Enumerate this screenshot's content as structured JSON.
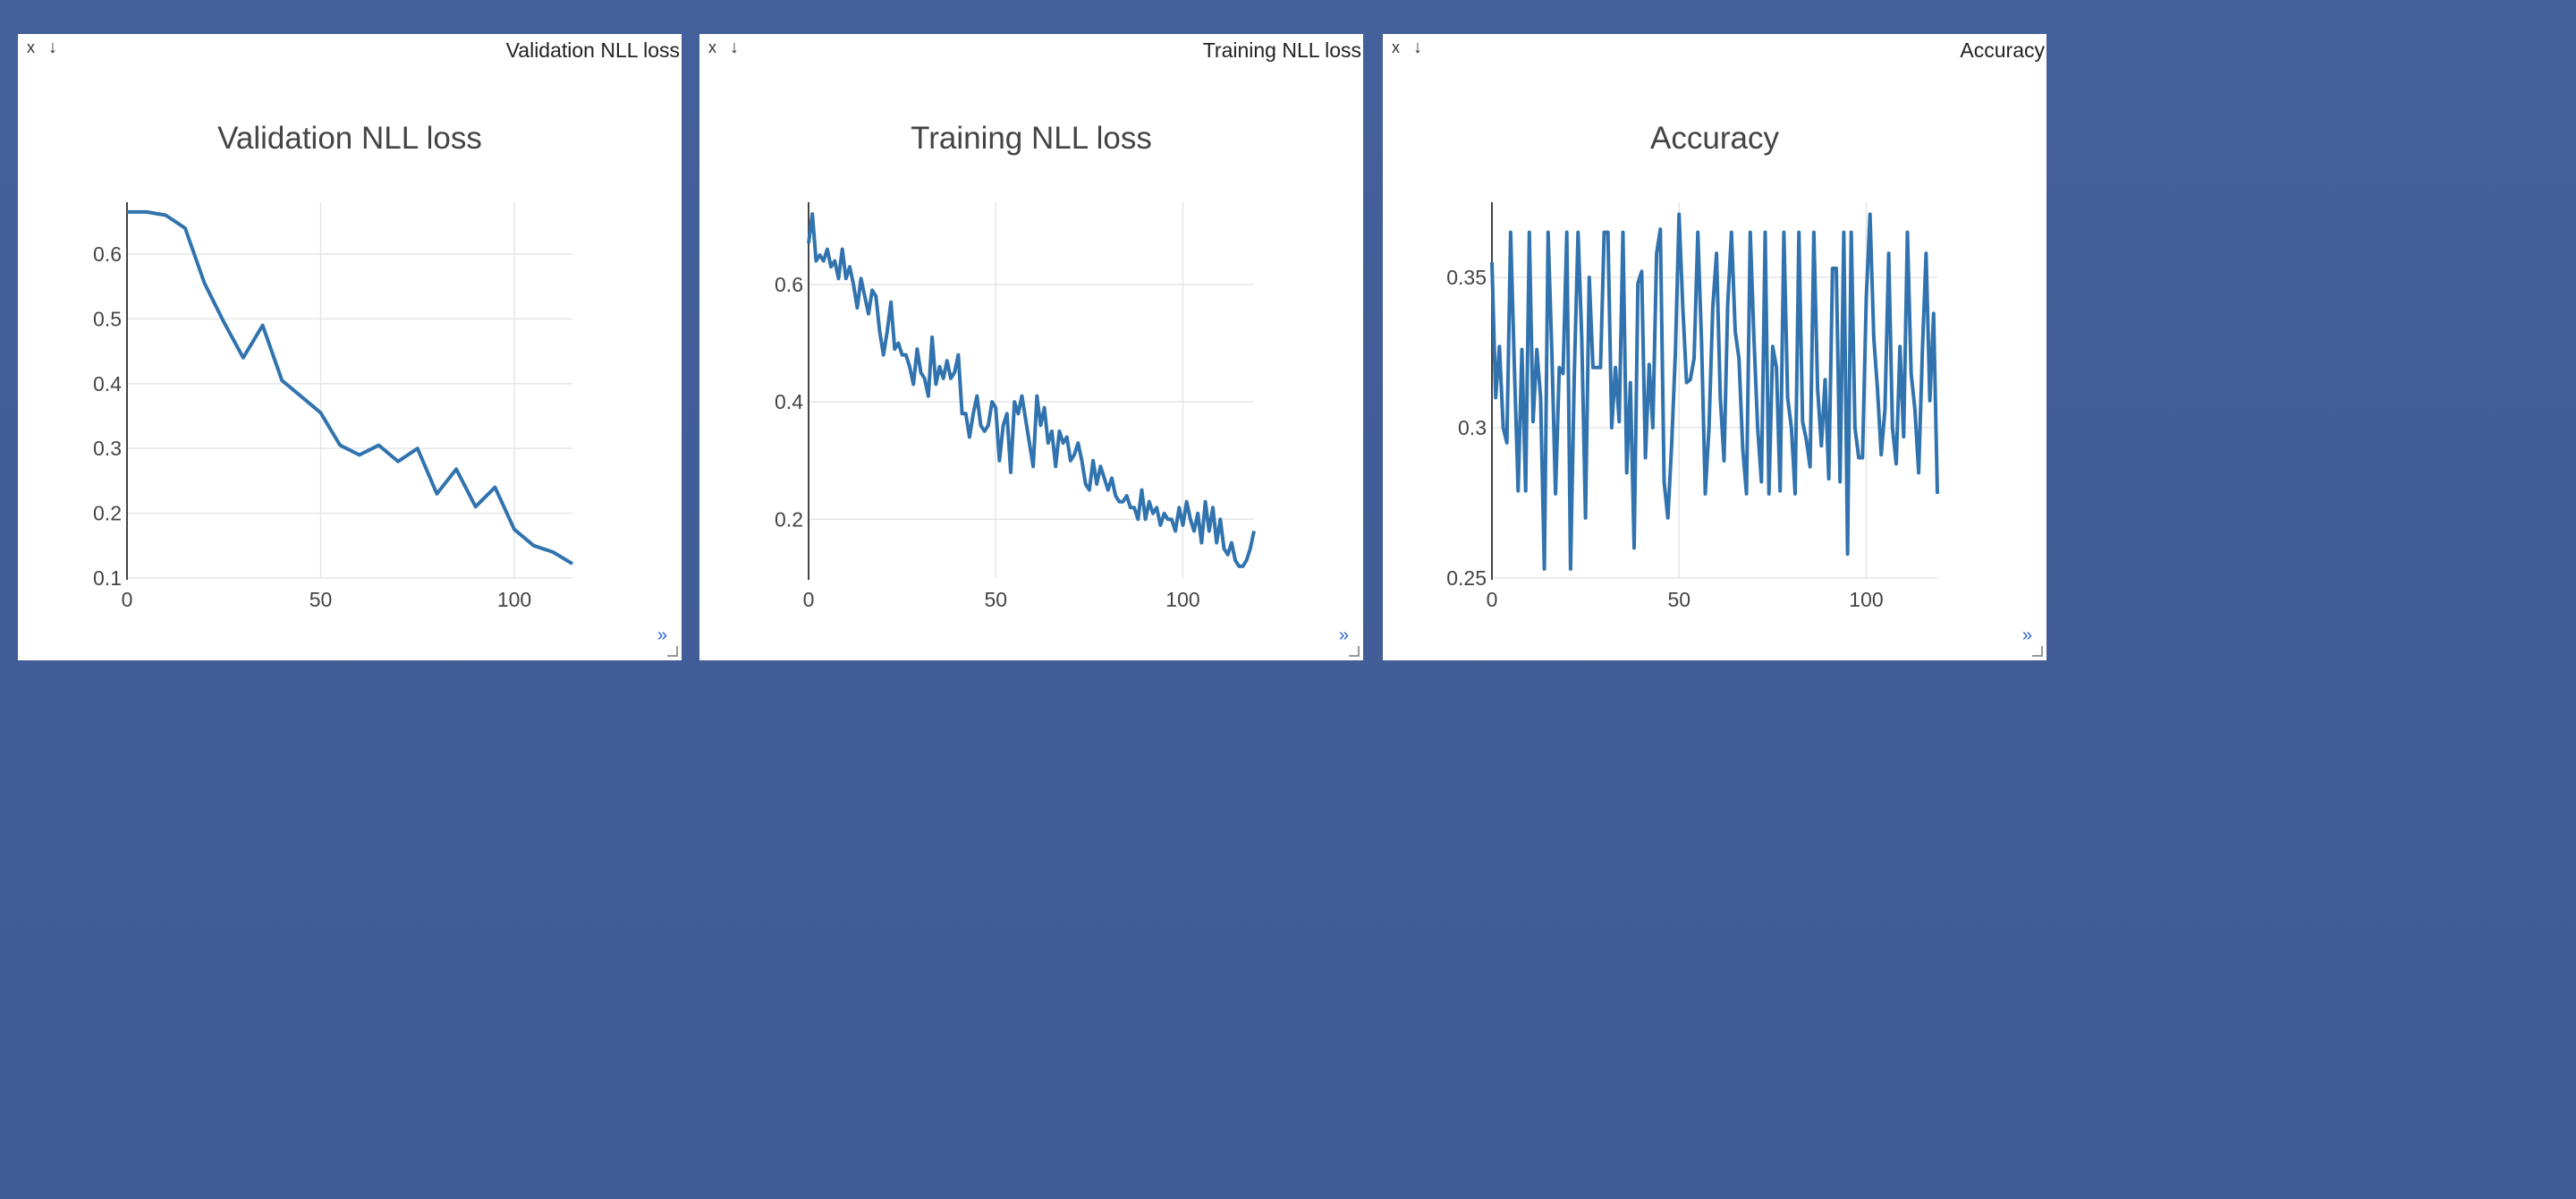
{
  "colors": {
    "background": "#425d97",
    "line": "#3173ae",
    "grid": "#e6e6e6"
  },
  "panes": [
    {
      "header_title": "Validation NLL loss",
      "close_label": "x",
      "download_label": "↓",
      "more_label": "»"
    },
    {
      "header_title": "Training NLL loss",
      "close_label": "x",
      "download_label": "↓",
      "more_label": "»"
    },
    {
      "header_title": "Accuracy",
      "close_label": "x",
      "download_label": "↓",
      "more_label": "»"
    }
  ],
  "chart_data": [
    {
      "type": "line",
      "title": "Validation NLL loss",
      "xlabel": "",
      "ylabel": "",
      "xlim": [
        0,
        115
      ],
      "ylim": [
        0.1,
        0.68
      ],
      "xticks": [
        0,
        50,
        100
      ],
      "yticks": [
        0.1,
        0.2,
        0.3,
        0.4,
        0.5,
        0.6
      ],
      "ytick_labels": [
        "0.1",
        "0.2",
        "0.3",
        "0.4",
        "0.5",
        "0.6"
      ],
      "grid": true,
      "x": [
        0,
        5,
        10,
        15,
        20,
        25,
        30,
        35,
        40,
        45,
        50,
        55,
        60,
        65,
        70,
        75,
        80,
        85,
        90,
        95,
        100,
        105,
        110,
        115
      ],
      "y": [
        0.665,
        0.665,
        0.66,
        0.64,
        0.555,
        0.495,
        0.44,
        0.49,
        0.405,
        0.38,
        0.355,
        0.305,
        0.29,
        0.305,
        0.28,
        0.3,
        0.23,
        0.268,
        0.21,
        0.24,
        0.175,
        0.15,
        0.14,
        0.122
      ]
    },
    {
      "type": "line",
      "title": "Training NLL loss",
      "xlabel": "",
      "ylabel": "",
      "xlim": [
        0,
        119
      ],
      "ylim": [
        0.1,
        0.74
      ],
      "xticks": [
        0,
        50,
        100
      ],
      "yticks": [
        0.2,
        0.4,
        0.6
      ],
      "ytick_labels": [
        "0.2",
        "0.4",
        "0.6"
      ],
      "grid": true,
      "x": [
        0,
        1,
        2,
        3,
        4,
        5,
        6,
        7,
        8,
        9,
        10,
        11,
        12,
        13,
        14,
        15,
        16,
        17,
        18,
        19,
        20,
        21,
        22,
        23,
        24,
        25,
        26,
        27,
        28,
        29,
        30,
        31,
        32,
        33,
        34,
        35,
        36,
        37,
        38,
        39,
        40,
        41,
        42,
        43,
        44,
        45,
        46,
        47,
        48,
        49,
        50,
        51,
        52,
        53,
        54,
        55,
        56,
        57,
        58,
        59,
        60,
        61,
        62,
        63,
        64,
        65,
        66,
        67,
        68,
        69,
        70,
        71,
        72,
        73,
        74,
        75,
        76,
        77,
        78,
        79,
        80,
        81,
        82,
        83,
        84,
        85,
        86,
        87,
        88,
        89,
        90,
        91,
        92,
        93,
        94,
        95,
        96,
        97,
        98,
        99,
        100,
        101,
        102,
        103,
        104,
        105,
        106,
        107,
        108,
        109,
        110,
        111,
        112,
        113,
        114,
        115,
        116,
        117,
        118,
        119
      ],
      "y": [
        0.67,
        0.72,
        0.64,
        0.65,
        0.64,
        0.66,
        0.63,
        0.64,
        0.61,
        0.66,
        0.61,
        0.63,
        0.6,
        0.56,
        0.61,
        0.58,
        0.55,
        0.59,
        0.58,
        0.52,
        0.48,
        0.52,
        0.57,
        0.49,
        0.5,
        0.48,
        0.48,
        0.46,
        0.43,
        0.49,
        0.45,
        0.44,
        0.41,
        0.51,
        0.43,
        0.46,
        0.44,
        0.47,
        0.44,
        0.45,
        0.48,
        0.38,
        0.38,
        0.34,
        0.38,
        0.41,
        0.36,
        0.35,
        0.36,
        0.4,
        0.39,
        0.3,
        0.36,
        0.38,
        0.28,
        0.4,
        0.38,
        0.41,
        0.37,
        0.33,
        0.29,
        0.41,
        0.36,
        0.39,
        0.33,
        0.35,
        0.29,
        0.35,
        0.33,
        0.34,
        0.3,
        0.31,
        0.33,
        0.3,
        0.26,
        0.25,
        0.3,
        0.26,
        0.29,
        0.27,
        0.25,
        0.27,
        0.24,
        0.23,
        0.23,
        0.24,
        0.22,
        0.22,
        0.2,
        0.25,
        0.2,
        0.23,
        0.21,
        0.22,
        0.19,
        0.21,
        0.2,
        0.2,
        0.18,
        0.22,
        0.19,
        0.23,
        0.2,
        0.18,
        0.21,
        0.16,
        0.23,
        0.18,
        0.22,
        0.16,
        0.2,
        0.15,
        0.14,
        0.16,
        0.13,
        0.12,
        0.12,
        0.13,
        0.15,
        0.18
      ]
    },
    {
      "type": "line",
      "title": "Accuracy",
      "xlabel": "",
      "ylabel": "",
      "xlim": [
        0,
        119
      ],
      "ylim": [
        0.25,
        0.375
      ],
      "xticks": [
        0,
        50,
        100
      ],
      "yticks": [
        0.25,
        0.3,
        0.35
      ],
      "ytick_labels": [
        "0.25",
        "0.3",
        "0.35"
      ],
      "grid": true,
      "x": [
        0,
        1,
        2,
        3,
        4,
        5,
        6,
        7,
        8,
        9,
        10,
        11,
        12,
        13,
        14,
        15,
        16,
        17,
        18,
        19,
        20,
        21,
        22,
        23,
        24,
        25,
        26,
        27,
        28,
        29,
        30,
        31,
        32,
        33,
        34,
        35,
        36,
        37,
        38,
        39,
        40,
        41,
        42,
        43,
        44,
        45,
        46,
        47,
        48,
        49,
        50,
        51,
        52,
        53,
        54,
        55,
        56,
        57,
        58,
        59,
        60,
        61,
        62,
        63,
        64,
        65,
        66,
        67,
        68,
        69,
        70,
        71,
        72,
        73,
        74,
        75,
        76,
        77,
        78,
        79,
        80,
        81,
        82,
        83,
        84,
        85,
        86,
        87,
        88,
        89,
        90,
        91,
        92,
        93,
        94,
        95,
        96,
        97,
        98,
        99,
        100,
        101,
        102,
        103,
        104,
        105,
        106,
        107,
        108,
        109,
        110,
        111,
        112,
        113,
        114,
        115,
        116,
        117,
        118,
        119
      ],
      "y": [
        0.355,
        0.31,
        0.327,
        0.3,
        0.295,
        0.365,
        0.32,
        0.279,
        0.326,
        0.279,
        0.365,
        0.302,
        0.326,
        0.31,
        0.253,
        0.365,
        0.325,
        0.278,
        0.32,
        0.318,
        0.365,
        0.253,
        0.318,
        0.365,
        0.33,
        0.27,
        0.35,
        0.32,
        0.32,
        0.32,
        0.365,
        0.365,
        0.3,
        0.32,
        0.302,
        0.365,
        0.285,
        0.315,
        0.26,
        0.348,
        0.352,
        0.29,
        0.321,
        0.3,
        0.358,
        0.366,
        0.282,
        0.27,
        0.294,
        0.325,
        0.371,
        0.34,
        0.315,
        0.316,
        0.323,
        0.365,
        0.328,
        0.278,
        0.3,
        0.34,
        0.358,
        0.31,
        0.289,
        0.341,
        0.365,
        0.332,
        0.323,
        0.293,
        0.278,
        0.365,
        0.33,
        0.3,
        0.282,
        0.365,
        0.278,
        0.327,
        0.32,
        0.279,
        0.365,
        0.31,
        0.3,
        0.278,
        0.365,
        0.302,
        0.296,
        0.287,
        0.365,
        0.313,
        0.294,
        0.316,
        0.283,
        0.353,
        0.353,
        0.282,
        0.365,
        0.258,
        0.365,
        0.3,
        0.29,
        0.29,
        0.343,
        0.371,
        0.33,
        0.313,
        0.291,
        0.306,
        0.358,
        0.3,
        0.288,
        0.327,
        0.297,
        0.365,
        0.318,
        0.306,
        0.285,
        0.326,
        0.358,
        0.309,
        0.338,
        0.278
      ]
    }
  ]
}
